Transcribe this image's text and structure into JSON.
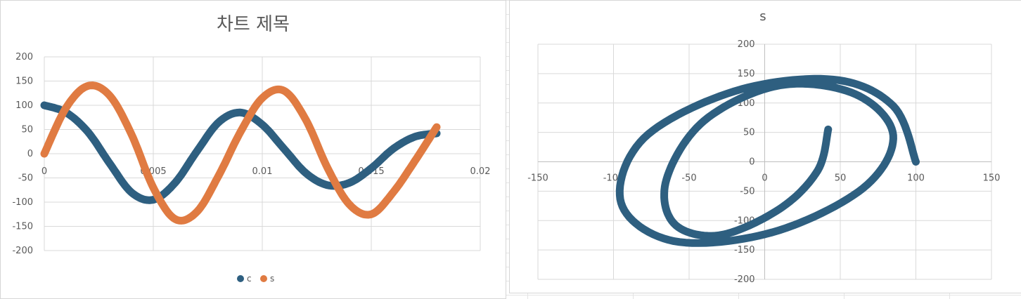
{
  "chart_data": [
    {
      "type": "scatter",
      "title": "차트 제목",
      "x_ticks": [
        "0",
        "0.005",
        "0.01",
        "0.015",
        "0.02"
      ],
      "y_ticks": [
        "200",
        "150",
        "100",
        "50",
        "0",
        "-50",
        "-100",
        "-150",
        "-200"
      ],
      "xlim": [
        0,
        0.02
      ],
      "ylim": [
        -200,
        200
      ],
      "grid": true,
      "legend_position": "bottom",
      "series": [
        {
          "name": "c",
          "color": "#2e5f80"
        },
        {
          "name": "s",
          "color": "#e07b42"
        }
      ],
      "x": [
        0,
        0.001,
        0.002,
        0.003,
        0.004,
        0.005,
        0.006,
        0.007,
        0.008,
        0.009,
        0.01,
        0.011,
        0.012,
        0.013,
        0.014,
        0.015,
        0.016,
        0.017,
        0.018
      ],
      "c_values": [
        100,
        85,
        45,
        -20,
        -80,
        -95,
        -60,
        5,
        65,
        85,
        60,
        10,
        -40,
        -65,
        -60,
        -30,
        10,
        35,
        42
      ],
      "s_values": [
        0,
        95,
        140,
        120,
        40,
        -70,
        -135,
        -120,
        -45,
        45,
        115,
        130,
        70,
        -30,
        -105,
        -125,
        -80,
        -15,
        55
      ]
    },
    {
      "type": "scatter",
      "title": "s",
      "x_ticks": [
        "-150",
        "-100",
        "-50",
        "0",
        "50",
        "100",
        "150"
      ],
      "y_ticks": [
        "200",
        "150",
        "100",
        "50",
        "0",
        "-50",
        "-100",
        "-150",
        "-200"
      ],
      "xlim": [
        -150,
        150
      ],
      "ylim": [
        -200,
        200
      ],
      "grid": true,
      "color": "#2e5f80",
      "x": [
        100,
        85,
        45,
        -20,
        -80,
        -95,
        -60,
        5,
        65,
        85,
        60,
        10,
        -40,
        -65,
        -60,
        -30,
        10,
        35,
        42
      ],
      "y": [
        0,
        95,
        140,
        120,
        40,
        -70,
        -135,
        -120,
        -45,
        45,
        115,
        130,
        70,
        -30,
        -105,
        -125,
        -80,
        -15,
        55
      ]
    }
  ]
}
